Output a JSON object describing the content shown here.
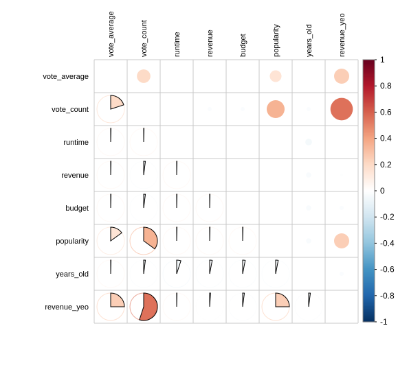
{
  "chart_data": {
    "type": "heatmap",
    "title": "",
    "variables": [
      "vote_average",
      "vote_count",
      "runtime",
      "revenue",
      "budget",
      "popularity",
      "years_old",
      "revenue_yeo"
    ],
    "upper_method": "circle",
    "lower_method": "pie",
    "diagonal": "blank",
    "matrix": [
      [
        1.0,
        0.2,
        0.0,
        0.0,
        0.0,
        0.15,
        0.0,
        0.25
      ],
      [
        0.2,
        1.0,
        0.0,
        -0.02,
        -0.02,
        0.35,
        -0.02,
        0.55
      ],
      [
        0.0,
        0.0,
        1.0,
        0.0,
        0.0,
        0.0,
        -0.05,
        0.0
      ],
      [
        0.0,
        -0.02,
        0.0,
        1.0,
        0.0,
        0.0,
        -0.03,
        -0.01
      ],
      [
        0.0,
        -0.02,
        0.0,
        0.0,
        1.0,
        0.0,
        -0.03,
        -0.02
      ],
      [
        0.15,
        0.35,
        0.0,
        0.0,
        0.0,
        1.0,
        -0.03,
        0.25
      ],
      [
        0.0,
        -0.02,
        -0.05,
        -0.03,
        -0.03,
        -0.03,
        1.0,
        -0.02
      ],
      [
        0.25,
        0.55,
        0.0,
        -0.01,
        -0.02,
        0.25,
        -0.02,
        1.0
      ]
    ],
    "colorbar": {
      "range": [
        -1,
        1
      ],
      "ticks": [
        "1",
        "0.8",
        "0.6",
        "0.4",
        "0.2",
        "0",
        "-0.2",
        "-0.4",
        "-0.6",
        "-0.8",
        "-1"
      ],
      "colors": [
        "#67001F",
        "#B2182B",
        "#D6604D",
        "#F4A582",
        "#FDDBC7",
        "#FFFFFF",
        "#D1E5F0",
        "#92C5DE",
        "#4393C3",
        "#2166AC",
        "#053061"
      ]
    }
  }
}
